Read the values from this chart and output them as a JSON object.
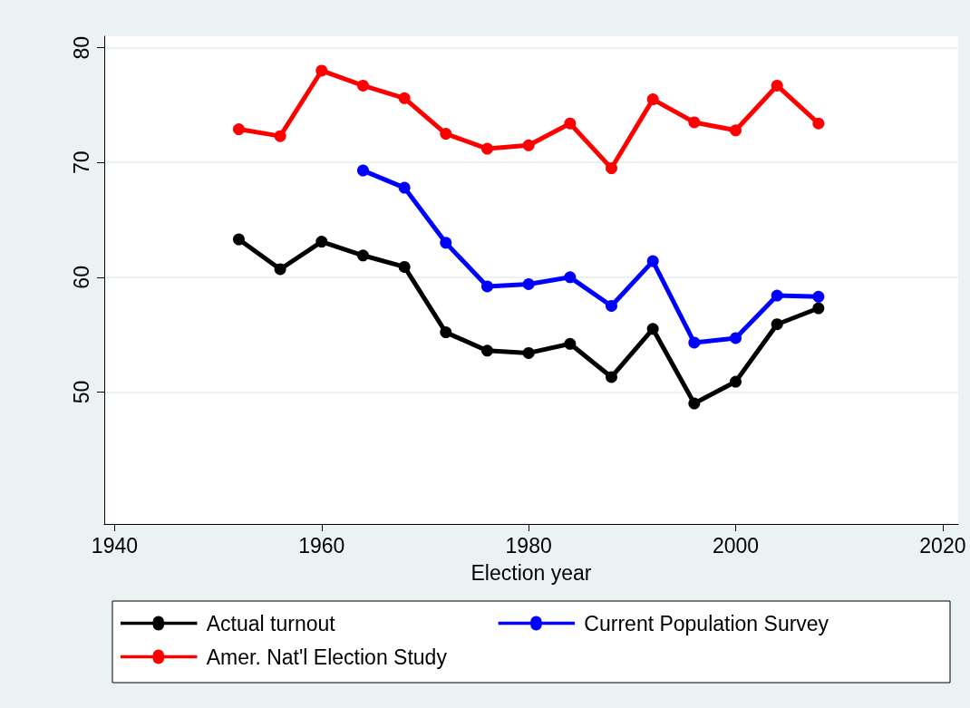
{
  "chart_data": {
    "type": "line",
    "xlabel": "Election year",
    "x": [
      1952,
      1956,
      1960,
      1964,
      1968,
      1972,
      1976,
      1980,
      1984,
      1988,
      1992,
      1996,
      2000,
      2004,
      2008
    ],
    "series": [
      {
        "name": "Actual turnout",
        "color": "#000000",
        "values": [
          63.3,
          60.7,
          63.1,
          61.9,
          60.9,
          55.2,
          53.6,
          53.4,
          54.2,
          51.3,
          55.5,
          49.0,
          50.9,
          55.9,
          57.3
        ]
      },
      {
        "name": "Current Population Survey",
        "color": "#0000ff",
        "values": [
          null,
          null,
          null,
          69.3,
          67.8,
          63.0,
          59.2,
          59.4,
          60.0,
          57.5,
          61.4,
          54.3,
          54.7,
          58.4,
          58.3
        ]
      },
      {
        "name": "Amer. Nat'l Election Study",
        "color": "#ff0000",
        "values": [
          72.9,
          72.3,
          78.0,
          76.7,
          75.6,
          72.5,
          71.2,
          71.5,
          73.4,
          69.5,
          75.5,
          73.5,
          72.8,
          76.7,
          73.4
        ]
      }
    ],
    "xlim": [
      1939,
      2021.5
    ],
    "xticks": [
      1940,
      1960,
      1980,
      2000,
      2020
    ],
    "ylim": [
      38.5,
      81
    ],
    "yticks": [
      50,
      60,
      70,
      80
    ],
    "grid": "y",
    "legend": "bottom",
    "marker": "circle",
    "line_style": "solid"
  }
}
